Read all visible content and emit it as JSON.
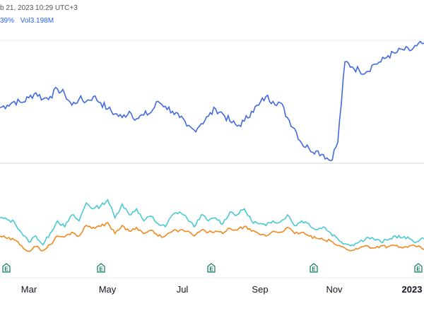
{
  "header": {
    "datetime": "b 21, 2023 10:29 UTC+3",
    "change": "39%",
    "vol_label": "Vol",
    "vol_value": "3.198M"
  },
  "colors": {
    "primary_line": "#4169e1",
    "compare_cyan": "#4ac9d3",
    "compare_orange": "#f0891f",
    "earnings_marker": "#0b7a63",
    "grid": "#e0e3eb"
  },
  "x_axis": {
    "labels": [
      "Mar",
      "May",
      "Jul",
      "Sep",
      "Nov",
      "2023"
    ],
    "bold_index": 5
  },
  "earnings": {
    "marker_text": "E",
    "count": 5
  },
  "chart_data": {
    "type": "line",
    "x_ticks": [
      "Mar",
      "May",
      "Jul",
      "Sep",
      "Nov",
      "2023"
    ],
    "series_shape": [
      [
        0.53,
        0.55,
        0.58,
        0.57,
        0.61,
        0.65,
        0.6,
        0.62,
        0.68,
        0.64,
        0.55,
        0.6,
        0.58,
        0.62,
        0.57,
        0.52,
        0.48,
        0.45,
        0.5,
        0.44,
        0.47,
        0.49,
        0.58,
        0.54,
        0.5,
        0.45,
        0.38,
        0.35,
        0.4,
        0.46,
        0.52,
        0.48,
        0.42,
        0.38,
        0.42,
        0.5,
        0.55,
        0.62,
        0.58,
        0.57,
        0.45,
        0.36,
        0.24,
        0.2,
        0.18,
        0.15,
        0.1,
        0.25,
        0.9,
        0.86,
        0.83,
        0.82,
        0.88,
        0.9,
        0.95,
        0.97,
        1.0,
        0.99,
        1.03,
        1.05
      ],
      [
        0.55,
        0.52,
        0.48,
        0.3,
        0.15,
        0.25,
        0.1,
        0.3,
        0.5,
        0.4,
        0.6,
        0.5,
        0.8,
        0.7,
        0.75,
        0.85,
        0.55,
        0.78,
        0.6,
        0.7,
        0.5,
        0.58,
        0.45,
        0.4,
        0.6,
        0.65,
        0.55,
        0.4,
        0.6,
        0.5,
        0.55,
        0.45,
        0.65,
        0.6,
        0.7,
        0.5,
        0.45,
        0.42,
        0.5,
        0.48,
        0.6,
        0.42,
        0.5,
        0.45,
        0.35,
        0.4,
        0.3,
        0.2,
        0.12,
        0.1,
        0.15,
        0.22,
        0.2,
        0.15,
        0.18,
        0.25,
        0.22,
        0.2,
        0.15,
        0.2
      ],
      [
        0.5,
        0.45,
        0.42,
        0.3,
        0.18,
        0.28,
        0.2,
        0.32,
        0.5,
        0.48,
        0.58,
        0.5,
        0.72,
        0.68,
        0.7,
        0.78,
        0.55,
        0.72,
        0.6,
        0.68,
        0.55,
        0.62,
        0.5,
        0.5,
        0.6,
        0.62,
        0.6,
        0.5,
        0.62,
        0.58,
        0.6,
        0.55,
        0.66,
        0.62,
        0.7,
        0.6,
        0.55,
        0.5,
        0.6,
        0.58,
        0.68,
        0.55,
        0.58,
        0.5,
        0.45,
        0.42,
        0.4,
        0.3,
        0.25,
        0.2,
        0.25,
        0.3,
        0.25,
        0.3,
        0.28,
        0.3,
        0.25,
        0.3,
        0.28,
        0.22
      ]
    ]
  }
}
